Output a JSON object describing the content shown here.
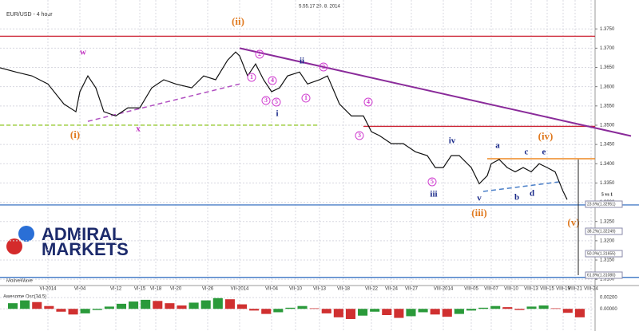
{
  "chart_data": {
    "type": "line",
    "title": "EUR/USD - 4 hour",
    "timestamp": "5.55.17 20. 8. 2014",
    "source": "MotiveWave",
    "logo": [
      "ADMIRAL",
      "MARKETS"
    ],
    "series": [
      {
        "name": "EUR/USD",
        "color": "#111111",
        "x": [
          0,
          4,
          8,
          12,
          16,
          19,
          20,
          22,
          24,
          26,
          29,
          32,
          35,
          38,
          41,
          44,
          48,
          51,
          54,
          57,
          59,
          60,
          62,
          64,
          66,
          68,
          70,
          72,
          75,
          77,
          80,
          82,
          85,
          88,
          91,
          93,
          95,
          98,
          101,
          104,
          107,
          109,
          111,
          113,
          115,
          118,
          120,
          122,
          123,
          125,
          127,
          129,
          131,
          133,
          135,
          137,
          139,
          141,
          142
        ],
        "values": [
          1.3649,
          1.3638,
          1.3628,
          1.3607,
          1.3555,
          1.3535,
          1.3587,
          1.3628,
          1.3597,
          1.3535,
          1.3524,
          1.3545,
          1.3545,
          1.3597,
          1.3618,
          1.3607,
          1.3597,
          1.3628,
          1.3618,
          1.3669,
          1.369,
          1.368,
          1.3628,
          1.3659,
          1.3618,
          1.3587,
          1.3597,
          1.3628,
          1.3638,
          1.3607,
          1.3618,
          1.3628,
          1.3555,
          1.3524,
          1.3524,
          1.3483,
          1.3473,
          1.3452,
          1.3452,
          1.3431,
          1.3421,
          1.339,
          1.339,
          1.3421,
          1.3421,
          1.339,
          1.3348,
          1.3369,
          1.34,
          1.3411,
          1.339,
          1.3379,
          1.339,
          1.3379,
          1.34,
          1.339,
          1.3379,
          1.3328,
          1.3307
        ]
      }
    ],
    "xlim": [
      0,
      149
    ],
    "ylim": [
      1.309,
      1.3825
    ],
    "yticks": [
      {
        "value": 1.31,
        "label": "1.3100"
      },
      {
        "value": 1.315,
        "label": "1.3150"
      },
      {
        "value": 1.32,
        "label": "1.3200"
      },
      {
        "value": 1.325,
        "label": "1.3250"
      },
      {
        "value": 1.33,
        "label": "1.3300"
      },
      {
        "value": 1.335,
        "label": "1.3350"
      },
      {
        "value": 1.34,
        "label": "1.3400"
      },
      {
        "value": 1.345,
        "label": "1.3450"
      },
      {
        "value": 1.35,
        "label": "1.3500"
      },
      {
        "value": 1.355,
        "label": "1.3550"
      },
      {
        "value": 1.36,
        "label": "1.3600"
      },
      {
        "value": 1.365,
        "label": "1.3650"
      },
      {
        "value": 1.37,
        "label": "1.3700"
      },
      {
        "value": 1.375,
        "label": "1.3750"
      }
    ],
    "xticks": [
      {
        "value": 12,
        "label": "VI-2014"
      },
      {
        "value": 20,
        "label": "VI-04"
      },
      {
        "value": 29,
        "label": "VI-12"
      },
      {
        "value": 35,
        "label": "VI-15"
      },
      {
        "value": 39,
        "label": "VI-18"
      },
      {
        "value": 44,
        "label": "VI-20"
      },
      {
        "value": 52,
        "label": "VI-26"
      },
      {
        "value": 60,
        "label": "VII-2014"
      },
      {
        "value": 68,
        "label": "VII-04"
      },
      {
        "value": 74,
        "label": "VII-10"
      },
      {
        "value": 80,
        "label": "VII-13"
      },
      {
        "value": 86,
        "label": "VII-18"
      },
      {
        "value": 93,
        "label": "VII-22"
      },
      {
        "value": 98,
        "label": "VII-24"
      },
      {
        "value": 103,
        "label": "VII-27"
      },
      {
        "value": 111,
        "label": "VIII-2014"
      },
      {
        "value": 118,
        "label": "VIII-05"
      },
      {
        "value": 123,
        "label": "VIII-07"
      },
      {
        "value": 128,
        "label": "VIII-10"
      },
      {
        "value": 133,
        "label": "VIII-13"
      },
      {
        "value": 137,
        "label": "VIII-15"
      },
      {
        "value": 141,
        "label": "VIII-19"
      },
      {
        "value": 144,
        "label": "VIII-21"
      },
      {
        "value": 148,
        "label": "VIII-24"
      }
    ],
    "grid": true,
    "levels": [
      {
        "value": 1.3731,
        "color": "#cc2233"
      },
      {
        "value": 1.3497,
        "color": "#cc2233"
      },
      {
        "value": 1.35,
        "color": "#99cc33",
        "dashed": true
      },
      {
        "value": 1.3293,
        "color": "#4a7fc8"
      },
      {
        "value": 1.3105,
        "color": "#4a7fc8"
      },
      {
        "value": 1.3413,
        "color": "#ee8822"
      }
    ],
    "trendlines": [
      {
        "x": [
          60,
          158
        ],
        "values": [
          1.37,
          1.3472
        ],
        "color": "#8a2b9a"
      },
      {
        "x": [
          22,
          60
        ],
        "values": [
          1.351,
          1.3607
        ],
        "color": "#b04fc0",
        "dashed": true
      },
      {
        "x": [
          121,
          140
        ],
        "values": [
          1.3328,
          1.3353
        ],
        "color": "#4a7fc8",
        "dashed": true
      }
    ],
    "annotations": [
      {
        "text": "(ii)",
        "color": "#e07a20"
      },
      {
        "text": "w",
        "color": "#c030c0"
      },
      {
        "text": "x",
        "color": "#c030c0"
      },
      {
        "text": "(i)",
        "color": "#e07a20"
      },
      {
        "text": "i",
        "color": "#1a2a8a"
      },
      {
        "text": "ii",
        "color": "#1a2a8a"
      },
      {
        "text": "iii",
        "color": "#1a2a8a"
      },
      {
        "text": "iv",
        "color": "#1a2a8a"
      },
      {
        "text": "v",
        "color": "#1a2a8a"
      },
      {
        "text": "(iii)",
        "color": "#e07a20"
      },
      {
        "text": "(iv)",
        "color": "#e07a20"
      },
      {
        "text": "(v)",
        "color": "#e07a20"
      },
      {
        "text": "a",
        "color": "#1a2a8a"
      },
      {
        "text": "b",
        "color": "#1a2a8a"
      },
      {
        "text": "c",
        "color": "#1a2a8a"
      },
      {
        "text": "d",
        "color": "#1a2a8a"
      },
      {
        "text": "e",
        "color": "#1a2a8a"
      },
      {
        "text": "1",
        "color": "#d040d0"
      },
      {
        "text": "2",
        "color": "#d040d0"
      },
      {
        "text": "3",
        "color": "#d040d0"
      },
      {
        "text": "4",
        "color": "#d040d0"
      },
      {
        "text": "5",
        "color": "#d040d0"
      },
      {
        "text": "1",
        "color": "#d040d0"
      },
      {
        "text": "2",
        "color": "#d040d0"
      },
      {
        "text": "3",
        "color": "#d040d0"
      },
      {
        "text": "4",
        "color": "#d040d0"
      },
      {
        "text": "5",
        "color": "#d040d0"
      },
      {
        "text": "5 vs 1",
        "color": "#111111"
      }
    ],
    "fib_labels": [
      "23.6%(1.32951)",
      "38.2%(1.32249)",
      "50.0%(1.31655)",
      "61.8%(1.31080)"
    ],
    "oscillator": {
      "title": "Awesome Osc(34,5)",
      "ylim": [
        -0.0035,
        0.003
      ],
      "yticks": [
        {
          "value": 0.002,
          "label": "0.00200"
        },
        {
          "value": 0,
          "label": "0.00000"
        }
      ],
      "values": [
        0.001,
        0.0015,
        0.0012,
        0.0005,
        -0.0005,
        -0.001,
        -0.0008,
        -0.0002,
        0.0004,
        0.0009,
        0.0013,
        0.0016,
        0.0014,
        0.001,
        0.0006,
        0.0011,
        0.0015,
        0.0019,
        0.0017,
        0.0008,
        -0.0003,
        -0.0009,
        -0.0006,
        0.0002,
        0.0005,
        0.0001,
        -0.0008,
        -0.0015,
        -0.0018,
        -0.0012,
        -0.0005,
        -0.0011,
        -0.0016,
        -0.0013,
        -0.0006,
        -0.001,
        -0.0014,
        -0.0009,
        -0.0003,
        0.0002,
        0.0005,
        0.0003,
        -0.0002,
        0.0004,
        0.0006,
        0.0001,
        -0.0007,
        -0.0015
      ]
    }
  }
}
